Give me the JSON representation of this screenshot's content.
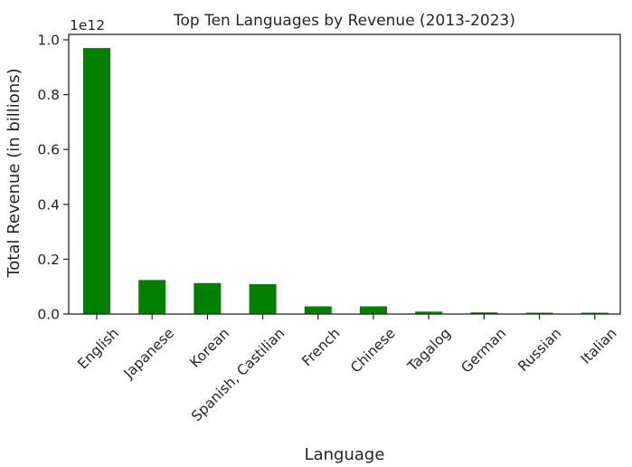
{
  "chart_data": {
    "type": "bar",
    "title": "Top Ten Languages by Revenue (2013-2023)",
    "xlabel": "Language",
    "ylabel": "Total Revenue (in billions)",
    "axis_multiplier": "1e12",
    "categories": [
      "English",
      "Japanese",
      "Korean",
      "Spanish, Castilian",
      "French",
      "Chinese",
      "Tagalog",
      "German",
      "Russian",
      "Italian"
    ],
    "values": [
      0.97,
      0.124,
      0.113,
      0.109,
      0.028,
      0.028,
      0.009,
      0.006,
      0.005,
      0.005
    ],
    "value_scale": 1000000000000.0,
    "ylim": [
      0,
      1.0
    ],
    "yticks": [
      0.0,
      0.2,
      0.4,
      0.6,
      0.8,
      1.0
    ],
    "ytick_labels": [
      "0.0",
      "0.2",
      "0.4",
      "0.6",
      "0.8",
      "1.0"
    ],
    "bar_color": "#008000",
    "grid": false,
    "legend": "none"
  }
}
